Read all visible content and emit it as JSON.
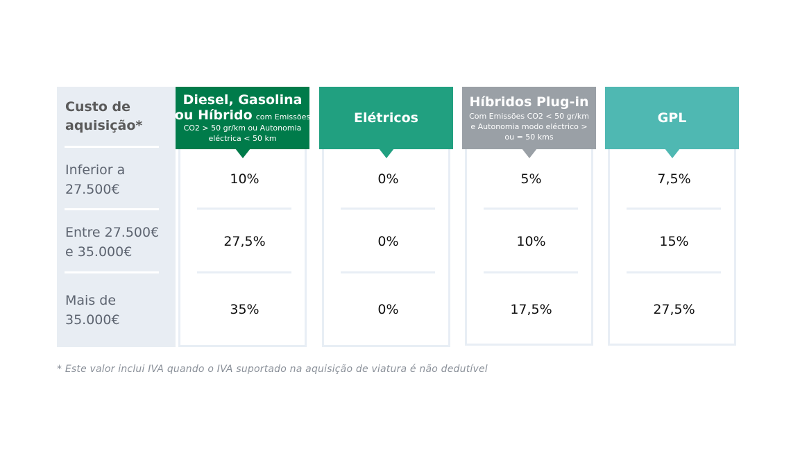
{
  "side": {
    "title": "Custo de\naquisição*",
    "rows": [
      "Inferior a\n27.500€",
      "Entre 27.500€\ne 35.000€",
      "Mais de\n35.000€"
    ]
  },
  "columns": [
    {
      "head_bold": "Diesel, Gasolina",
      "head_bold2": "ou Híbrido",
      "head_inline": "com Emissões",
      "head_small": "CO2 > 50 gr/km ou Autonomia\neléctrica < 50 km",
      "color": "#007b4a",
      "values": [
        "10%",
        "27,5%",
        "35%"
      ]
    },
    {
      "head_bold": "Elétricos",
      "color": "#21a080",
      "values": [
        "0%",
        "0%",
        "0%"
      ]
    },
    {
      "head_bold": "Híbridos Plug-in",
      "head_small": "Com Emissões CO2 < 50 gr/km\ne Autonomia modo eléctrico >\nou = 50 kms",
      "color": "#9aa0a6",
      "values": [
        "5%",
        "10%",
        "17,5%"
      ]
    },
    {
      "head_bold": "GPL",
      "color": "#4fb8b2",
      "values": [
        "7,5%",
        "15%",
        "27,5%"
      ]
    }
  ],
  "footnote": "* Este valor inclui IVA quando o IVA suportado na aquisição de viatura é não dedutível"
}
